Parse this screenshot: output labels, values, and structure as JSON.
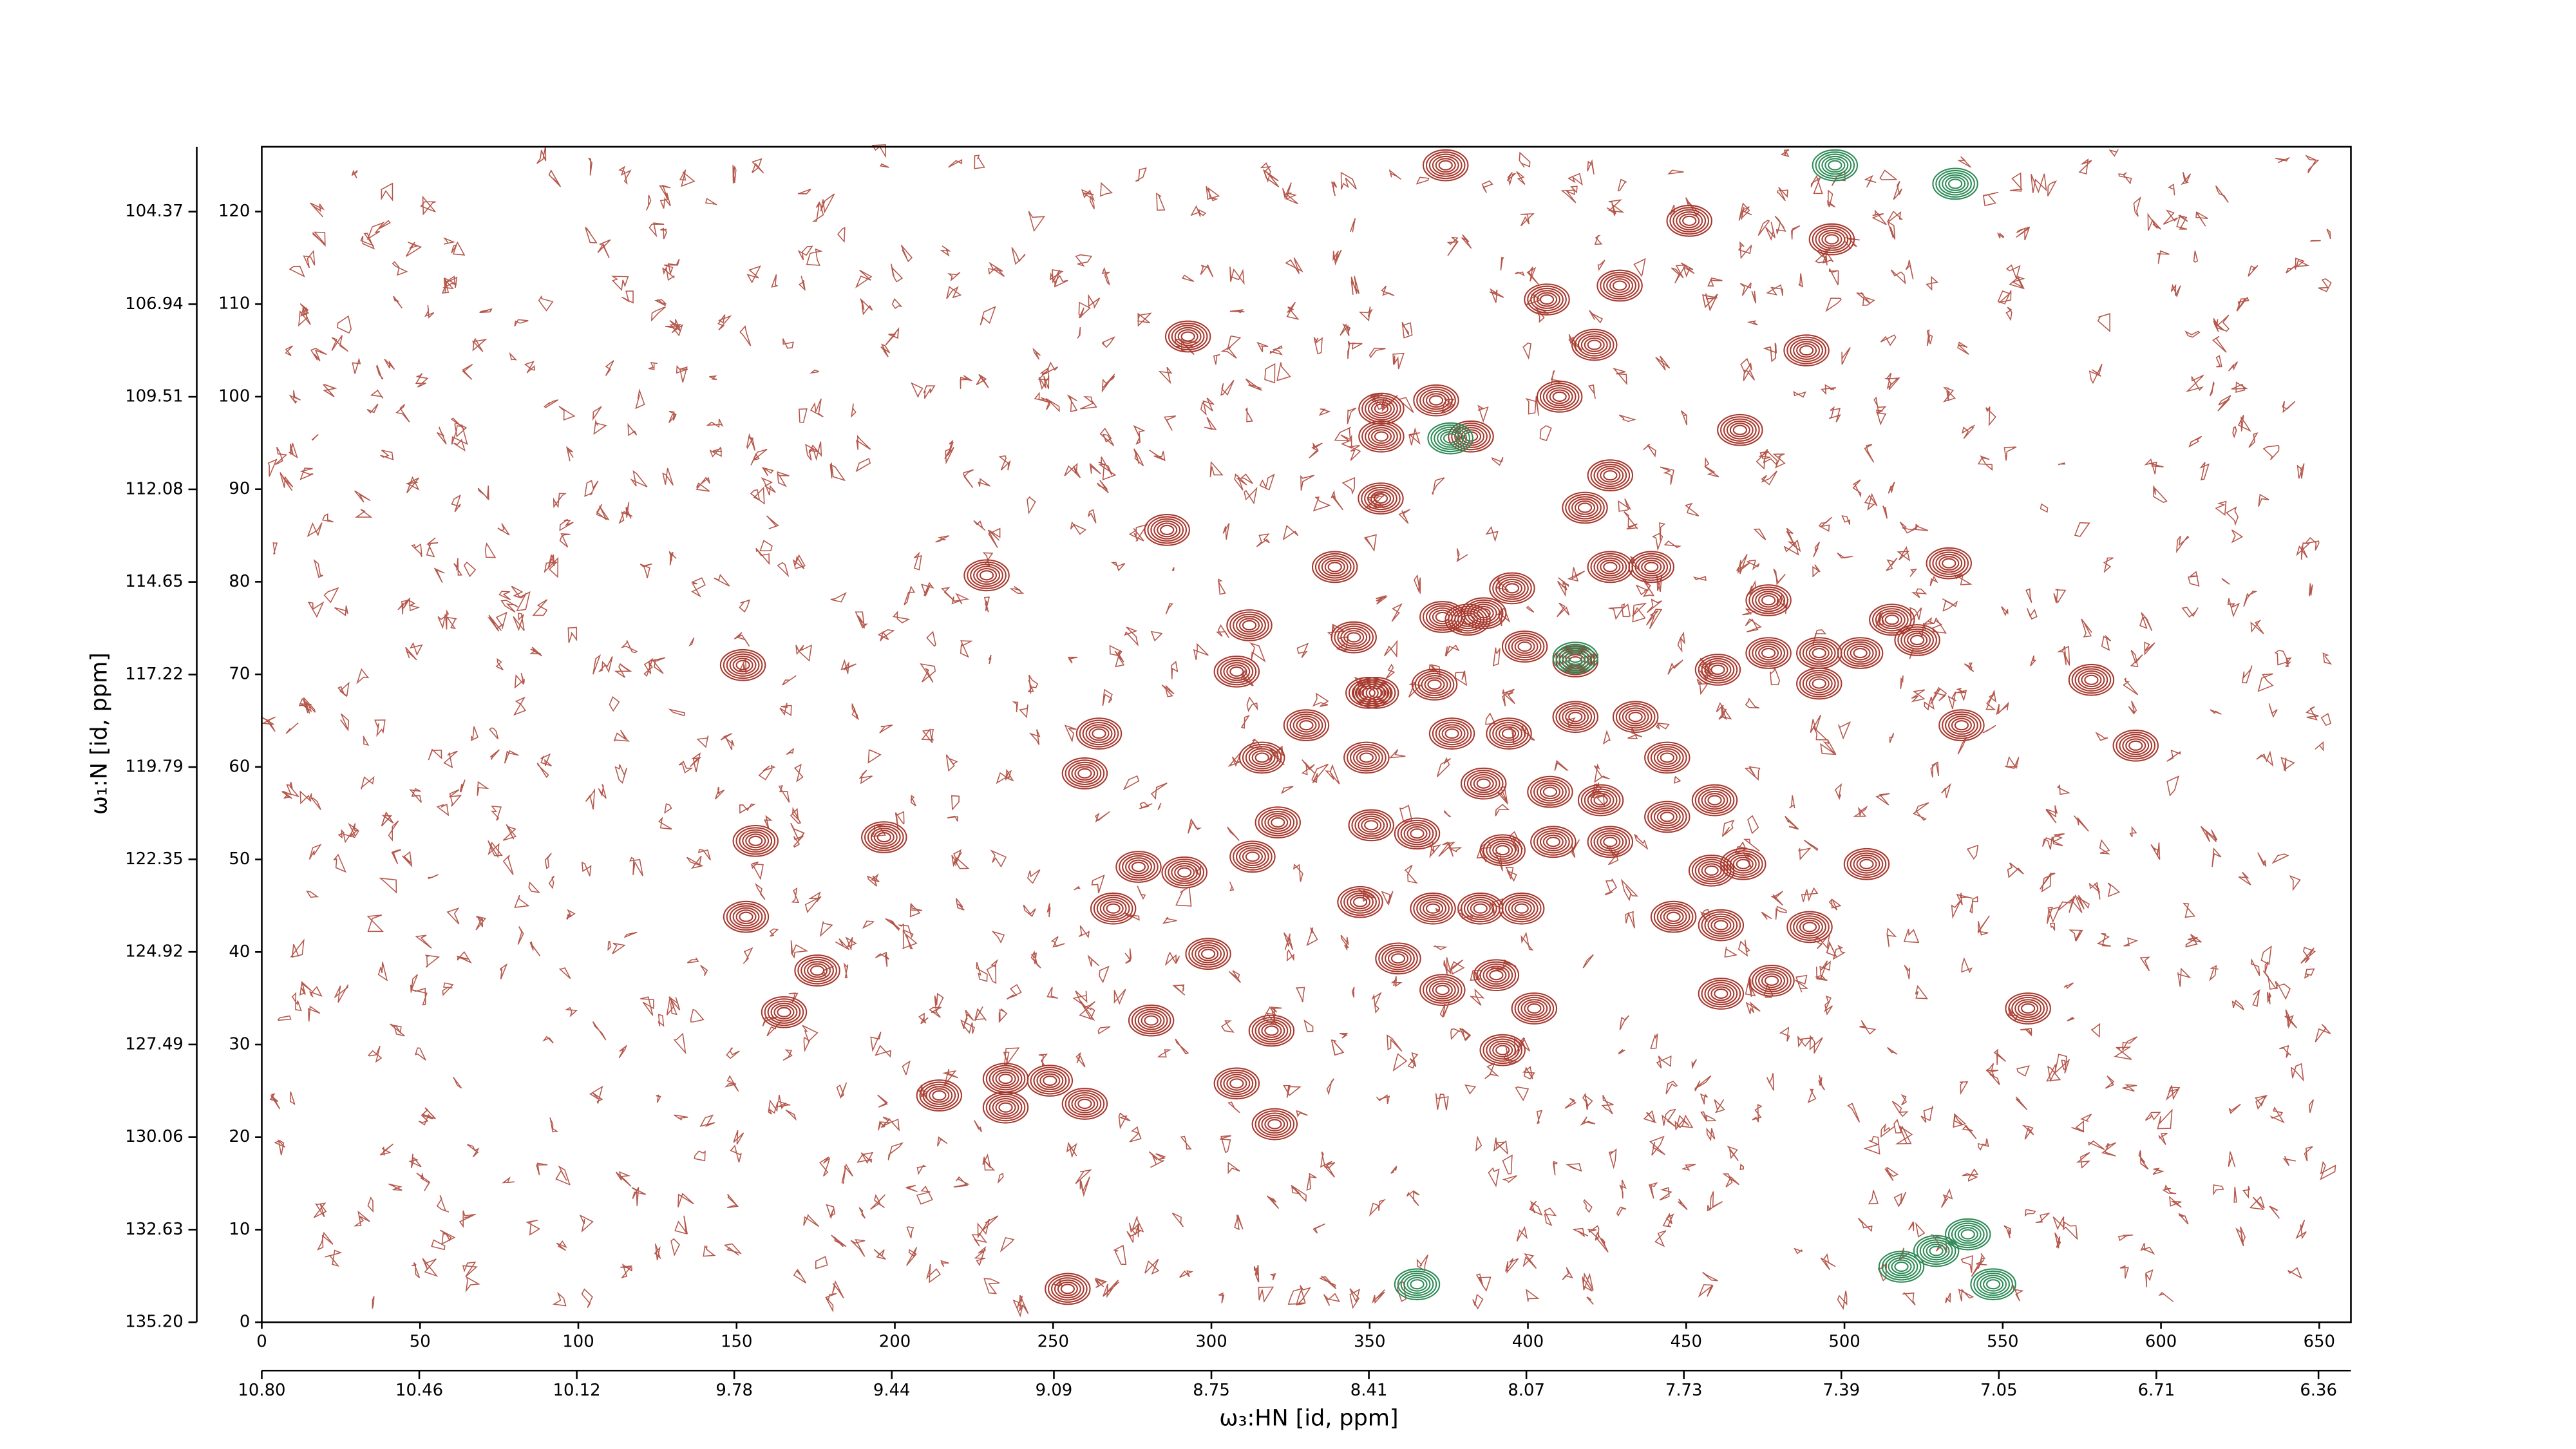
{
  "chart_data": {
    "type": "contour",
    "xlabel": "ω₃:HN [id, ppm]",
    "ylabel": "ω₁:N [id, ppm]",
    "xlim": [
      0,
      660
    ],
    "ylim": [
      0,
      127
    ],
    "xticks": [
      0,
      50,
      100,
      150,
      200,
      250,
      300,
      350,
      400,
      450,
      500,
      550,
      600,
      650
    ],
    "yticks": [
      0,
      10,
      20,
      30,
      40,
      50,
      60,
      70,
      80,
      90,
      100,
      110,
      120
    ],
    "x2lim": [
      10.8,
      6.29
    ],
    "x2ticks": [
      {
        "value": 10.8,
        "label": "10.80"
      },
      10.46,
      10.12,
      9.78,
      9.44,
      9.09,
      8.75,
      8.41,
      8.07,
      7.73,
      7.39,
      7.05,
      6.71,
      6.36
    ],
    "y2lim": [
      135.2,
      102.57
    ],
    "y2ticks": [
      {
        "value": 135.2,
        "label": "135.20"
      },
      132.63,
      {
        "value": 130.06,
        "label": "130.06"
      },
      127.49,
      124.92,
      122.35,
      119.79,
      117.22,
      114.65,
      112.08,
      109.51,
      106.94,
      104.37
    ],
    "series": [
      {
        "color": "#a8392e",
        "x": [
          353.7,
          353.7,
          371,
          382,
          426,
          418,
          410,
          406,
          429,
          421,
          451,
          496,
          488,
          467,
          374,
          292.6,
          286,
          229,
          339,
          353.5,
          533,
          152,
          156,
          196.6,
          153,
          175.5,
          165,
          264.5,
          260,
          316,
          321,
          313,
          291.5,
          277,
          269,
          299,
          308,
          319,
          320,
          281,
          235,
          235,
          249,
          260,
          214,
          254.6,
          312,
          308,
          345,
          349.6,
          370.5,
          381,
          395,
          399,
          415,
          426,
          439,
          415,
          434,
          444,
          459,
          444,
          426,
          458,
          468,
          446,
          461,
          477,
          461,
          489,
          507,
          476,
          476,
          460,
          492,
          505,
          515,
          492,
          537,
          578,
          592,
          558,
          330,
          352,
          349,
          350.5,
          347,
          365,
          370,
          359,
          373,
          390,
          385,
          398,
          392,
          386,
          376,
          394,
          402,
          392,
          407,
          423,
          408,
          373,
          386,
          523
        ],
        "y": [
          98.7,
          95.7,
          99.6,
          95.7,
          91.5,
          88,
          100,
          110.5,
          112,
          105.6,
          119,
          117,
          105,
          96.4,
          125,
          106.5,
          85.6,
          80.7,
          81.6,
          89,
          82,
          71,
          52,
          52.4,
          43.8,
          38,
          33.5,
          63.6,
          59.3,
          61,
          54,
          50.3,
          48.6,
          49.2,
          44.7,
          39.8,
          25.8,
          31.5,
          21.4,
          32.6,
          26.3,
          23.2,
          26.1,
          23.6,
          24.5,
          3.6,
          75.3,
          70.3,
          74,
          68,
          68.9,
          75.9,
          79.3,
          73,
          71.4,
          81.6,
          81.6,
          65.4,
          65.4,
          61,
          56.4,
          54.6,
          51.9,
          48.8,
          49.5,
          43.8,
          42.9,
          36.9,
          35.5,
          42.7,
          49.5,
          78,
          72.3,
          70.5,
          72.3,
          72.3,
          75.9,
          69,
          64.5,
          69.4,
          62.3,
          33.9,
          64.5,
          68,
          61,
          53.7,
          45.4,
          52.8,
          44.7,
          39.3,
          35.9,
          37.5,
          44.7,
          44.7,
          51,
          58.2,
          63.6,
          63.6,
          33.9,
          29.4,
          57.3,
          56.4,
          51.9,
          76.2,
          76.6,
          73.7
        ]
      },
      {
        "color": "#2e8b57",
        "x": [
          375.5,
          415,
          518,
          529,
          539,
          547,
          365,
          497,
          535
        ],
        "y": [
          95.5,
          71.8,
          6,
          7.7,
          9.5,
          4.1,
          4.1,
          125,
          123
        ]
      }
    ]
  }
}
